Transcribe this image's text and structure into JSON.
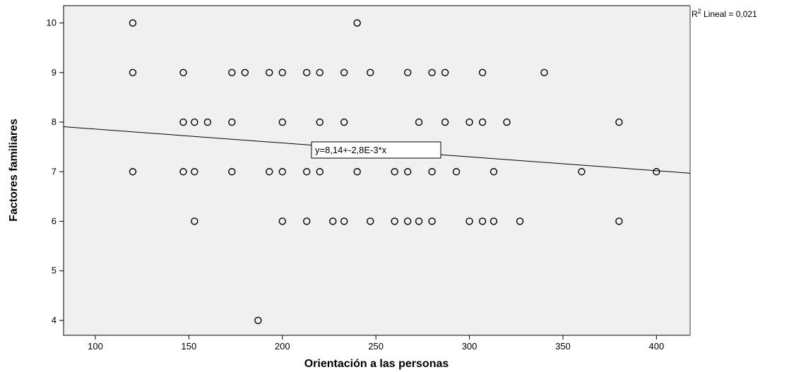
{
  "chart_data": {
    "type": "scatter",
    "xlabel": "Orientación a las personas",
    "ylabel": "Factores familiares",
    "xlim": [
      83,
      418
    ],
    "ylim": [
      3.7,
      10.35
    ],
    "xticks": [
      100,
      150,
      200,
      250,
      300,
      350,
      400
    ],
    "yticks": [
      4,
      5,
      6,
      7,
      8,
      9,
      10
    ],
    "fit_line": {
      "intercept": 8.14,
      "slope": -0.0028,
      "equation": "y=8,14+-2,8E-3*x"
    },
    "r2_label": "R",
    "r2_sup": "2",
    "r2_text": " Lineal = 0,021",
    "colors": {
      "plot_background": "#f0f0f0",
      "marker_stroke": "#000000",
      "line": "#000000"
    },
    "points": [
      [
        120,
        10
      ],
      [
        240,
        10
      ],
      [
        120,
        9
      ],
      [
        147,
        9
      ],
      [
        173,
        9
      ],
      [
        180,
        9
      ],
      [
        193,
        9
      ],
      [
        200,
        9
      ],
      [
        213,
        9
      ],
      [
        220,
        9
      ],
      [
        233,
        9
      ],
      [
        247,
        9
      ],
      [
        267,
        9
      ],
      [
        280,
        9
      ],
      [
        287,
        9
      ],
      [
        307,
        9
      ],
      [
        340,
        9
      ],
      [
        147,
        8
      ],
      [
        153,
        8
      ],
      [
        160,
        8
      ],
      [
        173,
        8
      ],
      [
        200,
        8
      ],
      [
        220,
        8
      ],
      [
        233,
        8
      ],
      [
        273,
        8
      ],
      [
        287,
        8
      ],
      [
        300,
        8
      ],
      [
        307,
        8
      ],
      [
        320,
        8
      ],
      [
        380,
        8
      ],
      [
        120,
        7
      ],
      [
        147,
        7
      ],
      [
        153,
        7
      ],
      [
        173,
        7
      ],
      [
        193,
        7
      ],
      [
        200,
        7
      ],
      [
        213,
        7
      ],
      [
        220,
        7
      ],
      [
        240,
        7
      ],
      [
        260,
        7
      ],
      [
        267,
        7
      ],
      [
        280,
        7
      ],
      [
        293,
        7
      ],
      [
        313,
        7
      ],
      [
        360,
        7
      ],
      [
        400,
        7
      ],
      [
        153,
        6
      ],
      [
        200,
        6
      ],
      [
        213,
        6
      ],
      [
        227,
        6
      ],
      [
        233,
        6
      ],
      [
        247,
        6
      ],
      [
        260,
        6
      ],
      [
        267,
        6
      ],
      [
        273,
        6
      ],
      [
        280,
        6
      ],
      [
        300,
        6
      ],
      [
        307,
        6
      ],
      [
        313,
        6
      ],
      [
        327,
        6
      ],
      [
        380,
        6
      ],
      [
        187,
        4
      ]
    ]
  }
}
